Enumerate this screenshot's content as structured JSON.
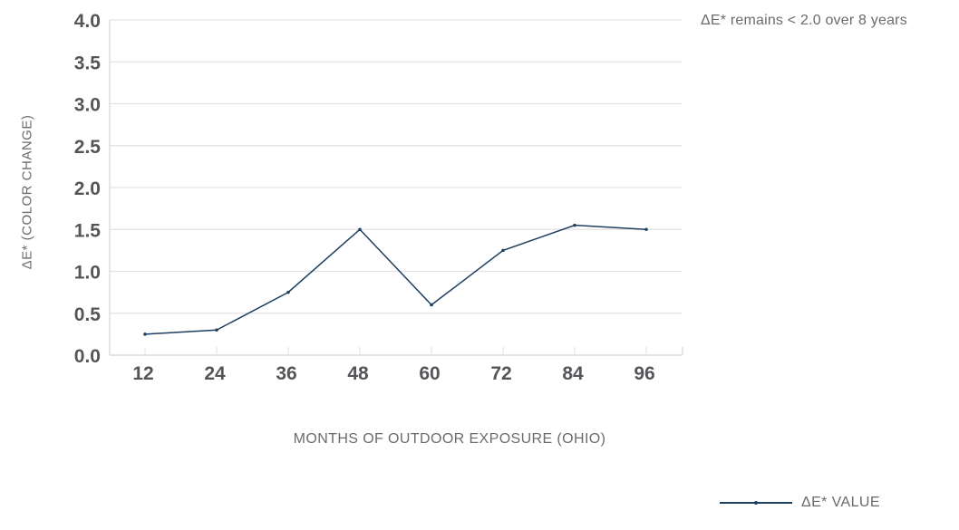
{
  "chart_data": {
    "type": "line",
    "title": "",
    "annotation": "ΔE* remains < 2.0 over 8 years",
    "xlabel": "MONTHS OF OUTDOOR EXPOSURE (OHIO)",
    "ylabel": "ΔE* (COLOR CHANGE)",
    "categories": [
      "12",
      "24",
      "36",
      "48",
      "60",
      "72",
      "84",
      "96"
    ],
    "x": [
      12,
      24,
      36,
      48,
      60,
      72,
      84,
      96
    ],
    "series": [
      {
        "name": "ΔE* VALUE",
        "color": "#1f3f60",
        "values": [
          0.25,
          0.3,
          0.75,
          1.5,
          0.6,
          1.25,
          1.55,
          1.5
        ]
      }
    ],
    "ylim": [
      0,
      4.0
    ],
    "yticks": [
      "0.0",
      "0.5",
      "1.0",
      "1.5",
      "2.0",
      "2.5",
      "3.0",
      "3.5",
      "4.0"
    ],
    "grid": true,
    "legend_position": "bottom-right"
  },
  "legend": {
    "label": "ΔE* VALUE"
  },
  "colors": {
    "line": "#1f3f60",
    "grid": "#e3e3e3",
    "axis": "#d4d4d4",
    "tick_text": "#555559",
    "label_text": "#6b6b6e"
  }
}
